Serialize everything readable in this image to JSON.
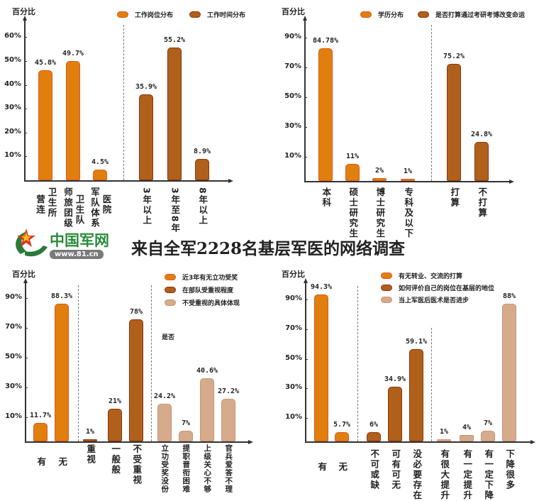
{
  "title": "来自全军2228名基层军医的网络调查",
  "logo": {
    "name": "中国军网",
    "url": "www.81.cn"
  },
  "colors": {
    "orange": "#e07f0e",
    "orange_border": "#e2561c",
    "brown": "#b0601a",
    "brown_border": "#8a3512",
    "tan": "#d6ab8c",
    "tan_border": "#c99474"
  },
  "chart_data": [
    {
      "type": "bar",
      "ylabel": "百分比",
      "ticks": [
        "60%",
        "50%",
        "40%",
        "30%",
        "20%",
        "10%"
      ],
      "tick_values": [
        60,
        50,
        40,
        30,
        20,
        10
      ],
      "legend": [
        {
          "name": "工作岗位分布",
          "series": "orange"
        },
        {
          "name": "工作时间分布",
          "series": "brown"
        }
      ],
      "bars": [
        {
          "category": "营连卫生所",
          "columns": [
            "营连",
            "卫生所"
          ],
          "value": 45.8,
          "value_label": "45.8%",
          "series": "orange"
        },
        {
          "category": "师旅团级卫生队",
          "columns": [
            "师旅团级",
            "卫生队"
          ],
          "value": 49.7,
          "value_label": "49.7%",
          "series": "orange"
        },
        {
          "category": "军队体系医院",
          "columns": [
            "军队体系",
            "医院"
          ],
          "value": 4.5,
          "value_label": "4.5%",
          "series": "orange"
        },
        {
          "category": "3年以上",
          "columns": [
            "3年以上"
          ],
          "value": 35.9,
          "value_label": "35.9%",
          "series": "brown"
        },
        {
          "category": "3年至8年",
          "columns": [
            "3年至8年"
          ],
          "value": 55.2,
          "value_label": "55.2%",
          "series": "brown"
        },
        {
          "category": "8年以上",
          "columns": [
            "8年以上"
          ],
          "value": 8.9,
          "value_label": "8.9%",
          "series": "brown"
        }
      ]
    },
    {
      "type": "bar",
      "ylabel": "百分比",
      "ticks": [
        "90%",
        "70%",
        "50%",
        "30%",
        "10%"
      ],
      "tick_values": [
        90,
        70,
        50,
        30,
        10
      ],
      "legend": [
        {
          "name": "学历分布",
          "series": "orange"
        },
        {
          "name": "是否打算通过考研考博改变命运",
          "series": "brown"
        }
      ],
      "bars": [
        {
          "category": "本科",
          "columns": [
            "本科"
          ],
          "value": 84.78,
          "value_label": "84.78%",
          "series": "orange"
        },
        {
          "category": "硕士研究生",
          "columns": [
            "硕士研究生"
          ],
          "value": 11,
          "value_label": "11%",
          "series": "orange"
        },
        {
          "category": "博士研究生",
          "columns": [
            "博士研究生"
          ],
          "value": 2,
          "value_label": "2%",
          "series": "orange"
        },
        {
          "category": "专科及以下",
          "columns": [
            "专科及以下"
          ],
          "value": 1,
          "value_label": "1%",
          "series": "orange"
        },
        {
          "category": "打算",
          "columns": [
            "打算"
          ],
          "value": 75.2,
          "value_label": "75.2%",
          "series": "brown"
        },
        {
          "category": "不打算",
          "columns": [
            "不打算"
          ],
          "value": 24.8,
          "value_label": "24.8%",
          "series": "brown"
        }
      ]
    },
    {
      "type": "bar",
      "ylabel": "百分比",
      "ticks": [
        "90%",
        "70%",
        "50%",
        "30%",
        "10%"
      ],
      "tick_values": [
        90,
        70,
        50,
        30,
        10
      ],
      "legend": [
        {
          "name": "近3年有无立功受奖",
          "series": "orange"
        },
        {
          "name": "在部队受重视程度",
          "series": "brown"
        },
        {
          "name": "不受重视的具体体现",
          "series": "tan"
        }
      ],
      "note": "是否",
      "bars": [
        {
          "category": "有",
          "columns": [
            "有"
          ],
          "value": 11.7,
          "value_label": "11.7%",
          "series": "orange"
        },
        {
          "category": "无",
          "columns": [
            "无"
          ],
          "value": 88.3,
          "value_label": "88.3%",
          "series": "orange"
        },
        {
          "category": "重视",
          "columns": [
            "重视"
          ],
          "value": 1,
          "value_label": "1%",
          "series": "brown"
        },
        {
          "category": "一般般",
          "columns": [
            "一般般"
          ],
          "value": 21,
          "value_label": "21%",
          "series": "brown"
        },
        {
          "category": "不受重视",
          "columns": [
            "不受重视"
          ],
          "value": 78,
          "value_label": "78%",
          "series": "brown"
        },
        {
          "category": "立功受奖没份",
          "columns": [
            "立功受奖没份"
          ],
          "value": 24.2,
          "value_label": "24.2%",
          "series": "tan"
        },
        {
          "category": "提职晋衔困难",
          "columns": [
            "提职晋衔困难"
          ],
          "value": 7,
          "value_label": "7%",
          "series": "tan"
        },
        {
          "category": "上级关心不够",
          "columns": [
            "上级关心不够"
          ],
          "value": 40.6,
          "value_label": "40.6%",
          "series": "tan"
        },
        {
          "category": "官兵爱答不理",
          "columns": [
            "官兵爱答不理"
          ],
          "value": 27.2,
          "value_label": "27.2%",
          "series": "tan"
        }
      ]
    },
    {
      "type": "bar",
      "ylabel": "百分比",
      "ticks": [
        "90%",
        "70%",
        "50%",
        "30%",
        "10%"
      ],
      "tick_values": [
        90,
        70,
        50,
        30,
        10
      ],
      "legend": [
        {
          "name": "有无转业、交流的打算",
          "series": "orange"
        },
        {
          "name": "如何评价自己的岗位在基层的地位",
          "series": "brown"
        },
        {
          "name": "当上军医后医术是否进步",
          "series": "tan"
        }
      ],
      "bars": [
        {
          "category": "有",
          "columns": [
            "有"
          ],
          "value": 94.3,
          "value_label": "94.3%",
          "series": "orange"
        },
        {
          "category": "无",
          "columns": [
            "无"
          ],
          "value": 5.7,
          "value_label": "5.7%",
          "series": "orange"
        },
        {
          "category": "不可或缺",
          "columns": [
            "不可或缺"
          ],
          "value": 6,
          "value_label": "6%",
          "series": "brown"
        },
        {
          "category": "可有可无",
          "columns": [
            "可有可无"
          ],
          "value": 34.9,
          "value_label": "34.9%",
          "series": "brown"
        },
        {
          "category": "没必要存在",
          "columns": [
            "没必要存在"
          ],
          "value": 59.1,
          "value_label": "59.1%",
          "series": "brown"
        },
        {
          "category": "有很大提升",
          "columns": [
            "有很大提升"
          ],
          "value": 1,
          "value_label": "1%",
          "series": "tan"
        },
        {
          "category": "有一定提升",
          "columns": [
            "有一定提升"
          ],
          "value": 4,
          "value_label": "4%",
          "series": "tan"
        },
        {
          "category": "有一定下降",
          "columns": [
            "有一定下降"
          ],
          "value": 7,
          "value_label": "7%",
          "series": "tan"
        },
        {
          "category": "下降很多",
          "columns": [
            "下降很多"
          ],
          "value": 88,
          "value_label": "88%",
          "series": "tan"
        }
      ]
    }
  ]
}
